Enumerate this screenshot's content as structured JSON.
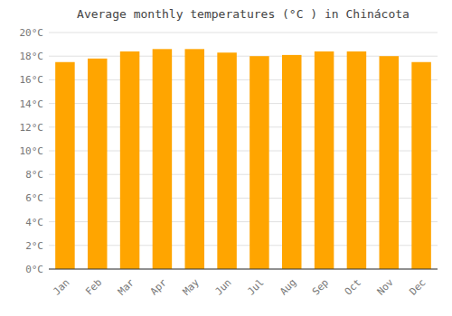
{
  "chart_data": {
    "type": "bar",
    "title": "Average monthly temperatures (°C ) in Chinácota",
    "categories": [
      "Jan",
      "Feb",
      "Mar",
      "Apr",
      "May",
      "Jun",
      "Jul",
      "Aug",
      "Sep",
      "Oct",
      "Nov",
      "Dec"
    ],
    "values": [
      17.5,
      17.8,
      18.4,
      18.6,
      18.6,
      18.3,
      18.0,
      18.1,
      18.4,
      18.4,
      18.0,
      17.5
    ],
    "color": "#FFA500",
    "ylim": [
      0,
      20
    ],
    "yticks": [
      {
        "value": 0,
        "label": "0°C"
      },
      {
        "value": 2,
        "label": "2°C"
      },
      {
        "value": 4,
        "label": "4°C"
      },
      {
        "value": 6,
        "label": "6°C"
      },
      {
        "value": 8,
        "label": "8°C"
      },
      {
        "value": 10,
        "label": "10°C"
      },
      {
        "value": 12,
        "label": "12°C"
      },
      {
        "value": 14,
        "label": "14°C"
      },
      {
        "value": 16,
        "label": "16°C"
      },
      {
        "value": 18,
        "label": "18°C"
      },
      {
        "value": 20,
        "label": "20°C"
      }
    ],
    "grid": true
  }
}
